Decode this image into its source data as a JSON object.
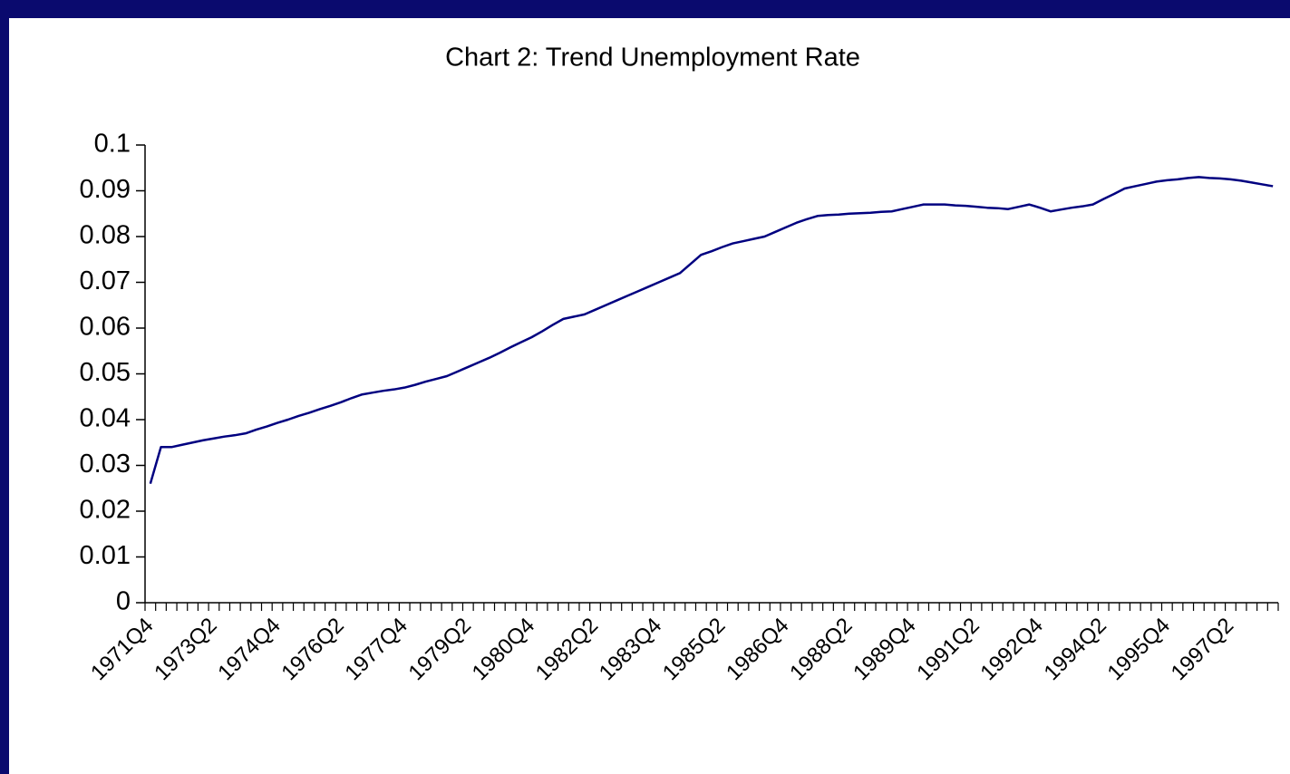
{
  "chart_data": {
    "type": "line",
    "title": "Chart 2: Trend Unemployment Rate",
    "categories": [
      "1971Q4",
      null,
      null,
      null,
      null,
      null,
      "1973Q2",
      null,
      null,
      null,
      null,
      null,
      "1974Q4",
      null,
      null,
      null,
      null,
      null,
      "1976Q2",
      null,
      null,
      null,
      null,
      null,
      "1977Q4",
      null,
      null,
      null,
      null,
      null,
      "1979Q2",
      null,
      null,
      null,
      null,
      null,
      "1980Q4",
      null,
      null,
      null,
      null,
      null,
      "1982Q2",
      null,
      null,
      null,
      null,
      null,
      "1983Q4",
      null,
      null,
      null,
      null,
      null,
      "1985Q2",
      null,
      null,
      null,
      null,
      null,
      "1986Q4",
      null,
      null,
      null,
      null,
      null,
      "1988Q2",
      null,
      null,
      null,
      null,
      null,
      "1989Q4",
      null,
      null,
      null,
      null,
      null,
      "1991Q2",
      null,
      null,
      null,
      null,
      null,
      "1992Q4",
      null,
      null,
      null,
      null,
      null,
      "1994Q2",
      null,
      null,
      null,
      null,
      null,
      "1995Q4",
      null,
      null,
      null,
      null,
      null,
      "1997Q2",
      null,
      null,
      null,
      null
    ],
    "values": [
      0.026,
      0.034,
      0.034,
      0.0345,
      0.035,
      0.0355,
      0.0359,
      0.0363,
      0.0366,
      0.037,
      0.0378,
      0.0385,
      0.0393,
      0.04,
      0.0408,
      0.0415,
      0.0423,
      0.043,
      0.0438,
      0.0447,
      0.0455,
      0.0459,
      0.0463,
      0.0466,
      0.047,
      0.0476,
      0.0483,
      0.0489,
      0.0495,
      0.0505,
      0.0515,
      0.0525,
      0.0535,
      0.0546,
      0.0558,
      0.0569,
      0.058,
      0.0593,
      0.0607,
      0.062,
      0.0625,
      0.063,
      0.064,
      0.065,
      0.066,
      0.067,
      0.068,
      0.069,
      0.07,
      0.071,
      0.072,
      0.074,
      0.076,
      0.0768,
      0.0777,
      0.0785,
      0.079,
      0.0795,
      0.08,
      0.081,
      0.082,
      0.083,
      0.0838,
      0.0845,
      0.0847,
      0.0848,
      0.085,
      0.0851,
      0.0852,
      0.0854,
      0.0855,
      0.086,
      0.0865,
      0.087,
      0.087,
      0.087,
      0.0868,
      0.0867,
      0.0865,
      0.0863,
      0.0862,
      0.086,
      0.0865,
      0.087,
      0.0863,
      0.0855,
      0.0859,
      0.0863,
      0.0866,
      0.087,
      0.0882,
      0.0893,
      0.0905,
      0.091,
      0.0915,
      0.092,
      0.0923,
      0.0925,
      0.0928,
      0.093,
      0.0928,
      0.0927,
      0.0925,
      0.0922,
      0.0918,
      0.0914,
      0.091
    ],
    "color": "#000080",
    "ylim": [
      0,
      0.1
    ],
    "yticks": [
      0,
      0.01,
      0.02,
      0.03,
      0.04,
      0.05,
      0.06,
      0.07,
      0.08,
      0.09,
      0.1
    ]
  }
}
